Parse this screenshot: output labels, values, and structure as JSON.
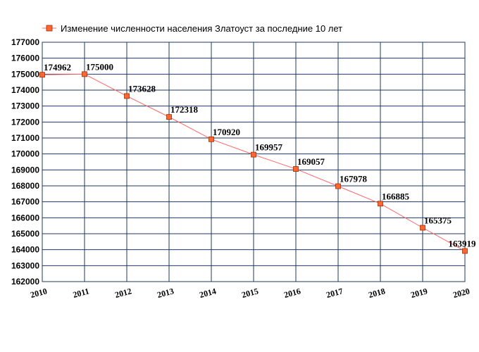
{
  "chart_data": {
    "type": "line",
    "title": "",
    "xlabel": "",
    "ylabel": "",
    "x": [
      "2010",
      "2011",
      "2012",
      "2013",
      "2014",
      "2015",
      "2016",
      "2017",
      "2018",
      "2019",
      "2020"
    ],
    "series": [
      {
        "name": "Изменение численности населения Златоуст за последние 10 лет",
        "values": [
          174962,
          175000,
          173628,
          172318,
          170920,
          169957,
          169057,
          167978,
          166885,
          165375,
          163919
        ],
        "color": "#ff6633",
        "line_color": "#ff6666"
      }
    ],
    "ylim": [
      162000,
      177000
    ],
    "ytick_step": 1000,
    "grid": true,
    "grid_color": "#1f3a5f",
    "legend_position": "top-left",
    "data_labels": true
  }
}
